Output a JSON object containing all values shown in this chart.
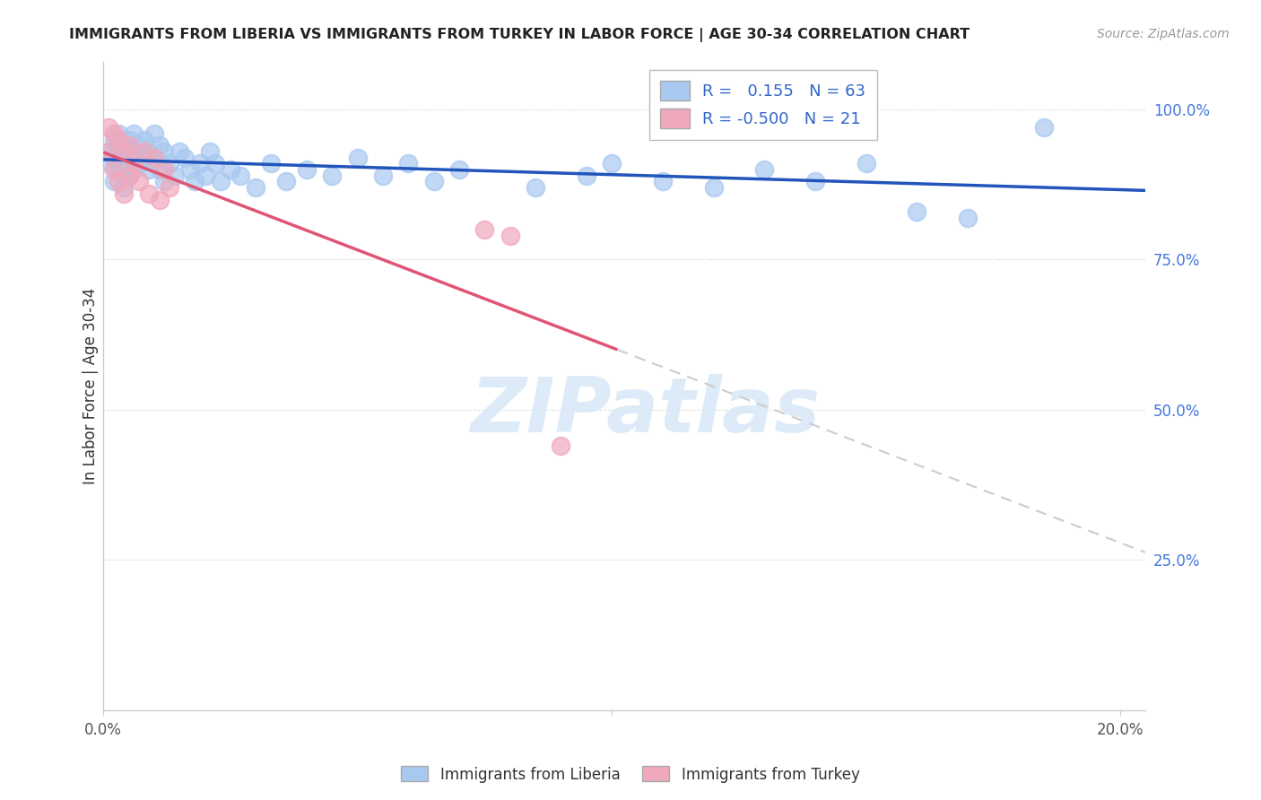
{
  "title": "IMMIGRANTS FROM LIBERIA VS IMMIGRANTS FROM TURKEY IN LABOR FORCE | AGE 30-34 CORRELATION CHART",
  "source": "Source: ZipAtlas.com",
  "ylabel": "In Labor Force | Age 30-34",
  "xlim": [
    0.0,
    0.205
  ],
  "ylim": [
    0.0,
    1.08
  ],
  "liberia_R": 0.155,
  "liberia_N": 63,
  "turkey_R": -0.5,
  "turkey_N": 21,
  "liberia_color": "#a8c8f0",
  "turkey_color": "#f0a8bc",
  "liberia_line_color": "#2255bb",
  "turkey_line_color": "#e05575",
  "liberia_x": [
    0.001,
    0.001,
    0.002,
    0.002,
    0.002,
    0.003,
    0.003,
    0.003,
    0.004,
    0.004,
    0.004,
    0.005,
    0.005,
    0.005,
    0.006,
    0.006,
    0.006,
    0.007,
    0.007,
    0.008,
    0.008,
    0.009,
    0.009,
    0.01,
    0.01,
    0.011,
    0.011,
    0.012,
    0.012,
    0.013,
    0.014,
    0.015,
    0.016,
    0.017,
    0.018,
    0.019,
    0.02,
    0.021,
    0.022,
    0.023,
    0.025,
    0.027,
    0.03,
    0.033,
    0.036,
    0.04,
    0.045,
    0.05,
    0.055,
    0.06,
    0.065,
    0.07,
    0.085,
    0.095,
    0.1,
    0.11,
    0.12,
    0.13,
    0.14,
    0.15,
    0.16,
    0.17,
    0.185
  ],
  "liberia_y": [
    0.93,
    0.91,
    0.95,
    0.92,
    0.88,
    0.96,
    0.93,
    0.9,
    0.94,
    0.91,
    0.87,
    0.95,
    0.93,
    0.89,
    0.96,
    0.93,
    0.9,
    0.94,
    0.91,
    0.95,
    0.92,
    0.93,
    0.9,
    0.96,
    0.92,
    0.94,
    0.9,
    0.93,
    0.88,
    0.91,
    0.89,
    0.93,
    0.92,
    0.9,
    0.88,
    0.91,
    0.89,
    0.93,
    0.91,
    0.88,
    0.9,
    0.89,
    0.87,
    0.91,
    0.88,
    0.9,
    0.89,
    0.92,
    0.89,
    0.91,
    0.88,
    0.9,
    0.87,
    0.89,
    0.91,
    0.88,
    0.87,
    0.9,
    0.88,
    0.91,
    0.83,
    0.82,
    0.97
  ],
  "turkey_x": [
    0.001,
    0.001,
    0.002,
    0.002,
    0.003,
    0.003,
    0.004,
    0.004,
    0.005,
    0.005,
    0.006,
    0.007,
    0.008,
    0.009,
    0.01,
    0.011,
    0.012,
    0.013,
    0.09,
    0.075,
    0.08
  ],
  "turkey_y": [
    0.97,
    0.93,
    0.96,
    0.9,
    0.95,
    0.88,
    0.93,
    0.86,
    0.94,
    0.89,
    0.91,
    0.88,
    0.93,
    0.86,
    0.92,
    0.85,
    0.9,
    0.87,
    0.44,
    0.8,
    0.79
  ],
  "watermark_text": "ZIPatlas",
  "watermark_color": "#dde8f5",
  "watermark_size": 62
}
